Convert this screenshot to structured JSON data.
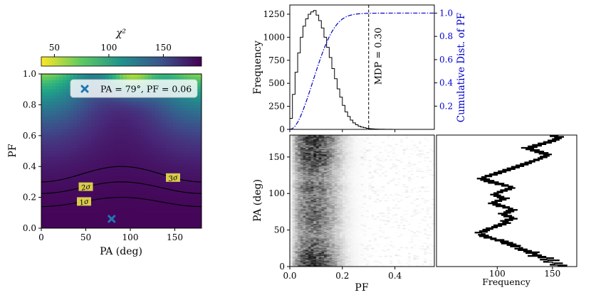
{
  "chart_data": [
    {
      "type": "heatmap",
      "title": "χ²",
      "colorbar": {
        "label": "χ²",
        "ticks": [
          50,
          100,
          150
        ],
        "range": [
          38,
          185
        ],
        "colormap": "viridis"
      },
      "xlabel": "PA (deg)",
      "ylabel": "PF",
      "xlim": [
        0,
        180
      ],
      "ylim": [
        0,
        1.0
      ],
      "xticks": [
        0,
        50,
        100,
        150
      ],
      "yticks": [
        0.0,
        0.2,
        0.4,
        0.6,
        0.8,
        1.0
      ],
      "best_fit": {
        "pa": 79,
        "pf": 0.06,
        "legend_label": "PA = 79°, PF = 0.06",
        "legend_position": "top-right"
      },
      "contours": [
        {
          "label": "1σ",
          "base": 0.14,
          "amplitude": 0.06,
          "peak_pa": 90
        },
        {
          "label": "2σ",
          "base": 0.225,
          "amplitude": 0.075,
          "peak_pa": 90
        },
        {
          "label": "3σ",
          "base": 0.3,
          "amplitude": 0.1,
          "peak_pa": 90
        }
      ],
      "labelled_contours": [
        "1σ",
        "2σ",
        "3σ"
      ],
      "chi2_model": {
        "min": 38,
        "max": 185,
        "shape": "rises with PF; saddle near PA 0 and 180, ridge near PA 90, peak at top near PA 100"
      }
    },
    {
      "type": "bar",
      "subtype": "histogram",
      "xlabel": "",
      "ylabel": "Frequency",
      "y2label": "Cumulative Dist. of PF",
      "xlim": [
        0,
        0.55
      ],
      "ylim": [
        0,
        1350
      ],
      "y2lim": [
        0,
        1.07
      ],
      "yticks": [
        0,
        250,
        500,
        750,
        1000,
        1250
      ],
      "y2ticks": [
        0.2,
        0.4,
        0.6,
        0.8,
        1.0
      ],
      "bin_width": 0.01,
      "bin_starts": [
        0.0,
        0.01,
        0.02,
        0.03,
        0.04,
        0.05,
        0.06,
        0.07,
        0.08,
        0.09,
        0.1,
        0.11,
        0.12,
        0.13,
        0.14,
        0.15,
        0.16,
        0.17,
        0.18,
        0.19,
        0.2,
        0.21,
        0.22,
        0.23,
        0.24,
        0.25,
        0.26,
        0.27,
        0.28,
        0.29,
        0.3,
        0.31,
        0.32,
        0.33,
        0.34,
        0.35,
        0.36,
        0.37,
        0.38,
        0.39,
        0.4
      ],
      "values": [
        120,
        380,
        620,
        830,
        1000,
        1120,
        1200,
        1250,
        1275,
        1290,
        1240,
        1180,
        1100,
        1000,
        890,
        780,
        660,
        550,
        440,
        350,
        260,
        190,
        140,
        100,
        70,
        50,
        35,
        25,
        18,
        12,
        8,
        6,
        4,
        3,
        2,
        2,
        1,
        1,
        1,
        0,
        0
      ],
      "cumulative_series": {
        "name": "Cumulative Dist. of PF",
        "color": "#0000cc",
        "style": "dash-dot"
      },
      "mdp": {
        "value": 0.3,
        "label": "MDP = 0.30"
      }
    },
    {
      "type": "heatmap",
      "subtype": "2d-histogram",
      "xlabel": "PF",
      "ylabel": "PA (deg)",
      "xlim": [
        0,
        0.55
      ],
      "ylim": [
        0,
        180
      ],
      "xticks": [
        0.0,
        0.2,
        0.4
      ],
      "xtick_labels": [
        "0.0",
        "0.2",
        "0.4"
      ],
      "yticks": [
        0,
        50,
        100,
        150
      ],
      "colormap": "greys",
      "pa_bins": 180,
      "pf_bins": 55
    },
    {
      "type": "bar",
      "subtype": "horizontal-step-histogram",
      "xlabel": "Frequency",
      "ylabel": "",
      "xlim": [
        45,
        172
      ],
      "ylim": [
        0,
        180
      ],
      "xticks": [
        100,
        150
      ],
      "bin_width_deg": 1,
      "values": [
        155,
        163,
        148,
        152,
        159,
        150,
        142,
        146,
        156,
        139,
        145,
        151,
        137,
        144,
        128,
        140,
        132,
        136,
        126,
        138,
        124,
        131,
        119,
        127,
        116,
        123,
        120,
        112,
        121,
        109,
        117,
        104,
        114,
        103,
        110,
        98,
        106,
        94,
        99,
        88,
        95,
        84,
        92,
        83,
        89,
        86,
        80,
        91,
        84,
        93,
        87,
        96,
        90,
        100,
        95,
        104,
        97,
        108,
        101,
        112,
        105,
        110,
        103,
        114,
        107,
        118,
        111,
        115,
        106,
        113,
        104,
        109,
        101,
        112,
        106,
        115,
        108,
        118,
        110,
        114,
        105,
        111,
        99,
        107,
        96,
        103,
        92,
        100,
        95,
        104,
        98,
        108,
        102,
        111,
        100,
        106,
        97,
        103,
        94,
        101,
        97,
        105,
        100,
        109,
        103,
        113,
        107,
        116,
        110,
        114,
        104,
        110,
        98,
        106,
        92,
        101,
        88,
        97,
        85,
        93,
        82,
        90,
        86,
        95,
        89,
        100,
        93,
        104,
        97,
        108,
        101,
        112,
        105,
        116,
        109,
        120,
        113,
        124,
        117,
        128,
        121,
        131,
        125,
        134,
        129,
        138,
        133,
        141,
        137,
        145,
        139,
        147,
        142,
        149,
        138,
        146,
        134,
        142,
        130,
        138,
        126,
        133,
        122,
        136,
        128,
        140,
        132,
        144,
        137,
        149,
        142,
        153,
        146,
        156,
        150,
        158,
        152,
        160,
        148,
        155
      ]
    }
  ]
}
